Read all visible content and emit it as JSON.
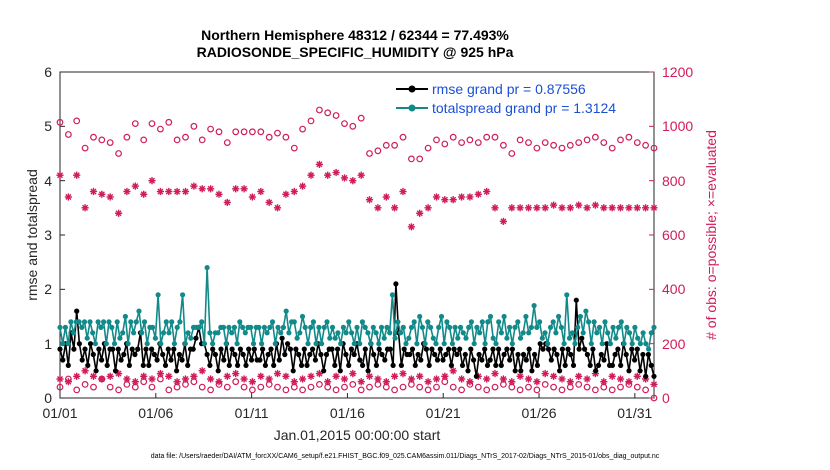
{
  "chart_data": {
    "type": "line",
    "title_line1": "Northern Hemisphere 48312 / 62344 = 77.493%",
    "title_line2": "RADIOSONDE_SPECIFIC_HUMIDITY @ 925 hPa",
    "xlabel": "Jan.01,2015 00:00:00 start",
    "ylabel_left": "rmse and totalspread",
    "ylabel_right": "# of obs: o=possible; ×=evaluated",
    "footnote": "data file: /Users/raeder/DAI/ATM_forcXX/CAM6_setup/f.e21.FHIST_BGC.f09_025.CAM6assim.011/Diags_NTrS_2017-02/Diags_NTrS_2015-01/obs_diag_output.nc",
    "x_range": [
      1,
      32
    ],
    "ylim_left": [
      0,
      6
    ],
    "ylim_right": [
      0,
      1200
    ],
    "yticks_left": [
      "0",
      "1",
      "2",
      "3",
      "4",
      "5",
      "6"
    ],
    "yticks_right": [
      "0",
      "200",
      "400",
      "600",
      "800",
      "1000",
      "1200"
    ],
    "x_ticks": [
      {
        "day": 1,
        "label": "01/01"
      },
      {
        "day": 6,
        "label": "01/06"
      },
      {
        "day": 11,
        "label": "01/11"
      },
      {
        "day": 16,
        "label": "01/16"
      },
      {
        "day": 21,
        "label": "01/21"
      },
      {
        "day": 26,
        "label": "01/26"
      },
      {
        "day": 31,
        "label": "01/31"
      }
    ],
    "legend": [
      {
        "label": "rmse grand pr = 0.87556",
        "color": "#000000"
      },
      {
        "label": "totalspread grand pr = 1.3124",
        "color": "#138a8a"
      }
    ],
    "series": [
      {
        "name": "rmse",
        "color": "#000000",
        "axis": "left",
        "values": [
          0.9,
          0.7,
          1.0,
          0.6,
          1.2,
          0.9,
          1.6,
          1.0,
          0.7,
          0.9,
          0.6,
          1.0,
          0.8,
          0.5,
          0.9,
          0.7,
          1.0,
          0.6,
          0.9,
          0.9,
          0.5,
          0.9,
          0.7,
          0.8,
          1.0,
          0.6,
          0.9,
          0.8,
          0.9,
          1.2,
          0.6,
          0.9,
          0.6,
          0.9,
          0.8,
          0.7,
          1.0,
          0.8,
          0.6,
          0.9,
          0.7,
          0.9,
          0.5,
          0.8,
          0.7,
          1.0,
          0.6,
          0.9,
          0.9,
          1.1,
          1.3,
          1.0,
          1.0,
          0.8,
          0.6,
          0.9,
          0.8,
          0.5,
          0.9,
          0.7,
          1.0,
          0.6,
          0.9,
          0.8,
          0.6,
          0.9,
          0.8,
          0.6,
          0.9,
          0.7,
          0.9,
          0.7,
          0.7,
          0.9,
          0.6,
          0.8,
          0.9,
          0.6,
          1.0,
          0.7,
          1.1,
          0.8,
          1.0,
          0.9,
          0.5,
          0.9,
          0.8,
          0.6,
          0.9,
          0.6,
          0.8,
          0.9,
          0.7,
          1.0,
          0.8,
          0.5,
          0.8,
          0.9,
          0.9,
          0.6,
          0.9,
          0.5,
          1.0,
          0.8,
          0.6,
          0.9,
          0.8,
          1.0,
          0.7,
          0.6,
          0.9,
          0.5,
          1.0,
          0.8,
          0.6,
          0.9,
          0.8,
          0.7,
          0.9,
          0.9,
          0.6,
          2.1,
          1.2,
          0.6,
          0.9,
          0.8,
          0.8,
          0.9,
          0.6,
          0.8,
          0.7,
          1.0,
          0.9,
          0.6,
          0.9,
          0.8,
          0.7,
          0.9,
          0.7,
          0.8,
          0.9,
          0.6,
          0.9,
          0.8,
          0.9,
          0.6,
          0.8,
          0.5,
          0.9,
          0.7,
          0.4,
          0.8,
          0.7,
          0.9,
          0.6,
          0.7,
          0.9,
          0.6,
          0.9,
          0.6,
          0.8,
          0.9,
          0.7,
          0.9,
          0.5,
          0.8,
          0.5,
          0.8,
          0.7,
          0.9,
          0.5,
          0.8,
          0.6,
          1.0,
          0.9,
          1.0,
          0.9,
          0.7,
          0.9,
          0.8,
          0.5,
          0.9,
          0.6,
          0.9,
          0.8,
          0.6,
          1.8,
          0.9,
          1.1,
          0.9,
          0.8,
          0.6,
          0.9,
          0.5,
          0.6,
          0.8,
          0.7,
          1.0,
          0.6,
          0.6,
          0.8,
          0.9,
          0.6,
          1.0,
          0.8,
          0.5,
          0.9,
          0.7,
          0.9,
          0.5,
          0.8,
          0.4,
          0.8,
          0.6,
          0.4
        ]
      },
      {
        "name": "totalspread",
        "color": "#138a8a",
        "axis": "left",
        "values": [
          1.3,
          1.0,
          1.3,
          1.0,
          1.4,
          1.2,
          1.4,
          1.4,
          1.3,
          1.4,
          1.1,
          1.4,
          1.2,
          1.0,
          1.4,
          1.3,
          1.4,
          1.0,
          1.4,
          1.3,
          1.0,
          1.4,
          1.1,
          1.2,
          1.5,
          1.0,
          1.4,
          1.2,
          1.4,
          1.6,
          1.2,
          1.4,
          1.0,
          1.3,
          1.3,
          1.1,
          1.9,
          1.0,
          1.2,
          1.4,
          1.2,
          1.4,
          1.0,
          1.3,
          1.4,
          1.9,
          1.0,
          1.2,
          1.1,
          1.3,
          1.3,
          1.3,
          1.4,
          1.0,
          2.4,
          1.2,
          1.0,
          1.2,
          1.2,
          1.3,
          1.3,
          1.0,
          1.3,
          1.2,
          1.3,
          1.0,
          1.4,
          1.3,
          1.2,
          1.3,
          1.3,
          1.0,
          1.3,
          1.3,
          1.0,
          1.3,
          1.2,
          1.3,
          1.4,
          1.0,
          1.3,
          1.2,
          1.3,
          1.6,
          1.2,
          1.4,
          1.4,
          1.1,
          1.2,
          1.5,
          1.3,
          1.0,
          1.3,
          1.4,
          1.0,
          1.3,
          1.0,
          1.3,
          1.4,
          1.1,
          1.3,
          1.1,
          1.2,
          1.0,
          1.3,
          1.2,
          1.4,
          1.2,
          1.0,
          1.3,
          1.0,
          1.4,
          1.3,
          1.2,
          1.0,
          1.3,
          1.2,
          1.0,
          1.3,
          1.1,
          1.3,
          1.2,
          1.9,
          1.1,
          1.4,
          1.2,
          1.3,
          1.0,
          1.1,
          1.3,
          1.4,
          1.0,
          1.5,
          1.3,
          1.0,
          1.4,
          1.3,
          1.1,
          1.0,
          1.3,
          1.5,
          1.0,
          1.4,
          1.3,
          1.0,
          1.3,
          1.1,
          1.3,
          1.2,
          1.1,
          1.3,
          1.4,
          1.0,
          1.3,
          1.2,
          1.4,
          1.0,
          1.4,
          1.5,
          1.1,
          1.0,
          1.4,
          1.2,
          1.5,
          1.1,
          1.3,
          1.0,
          1.3,
          1.4,
          1.1,
          1.2,
          1.5,
          1.2,
          1.3,
          1.7,
          1.3,
          1.4,
          1.1,
          1.2,
          1.0,
          1.3,
          1.4,
          1.2,
          1.5,
          1.3,
          1.0,
          1.9,
          1.1,
          1.2,
          1.0,
          1.3,
          1.5,
          1.2,
          1.6,
          1.4,
          1.0,
          1.4,
          1.2,
          1.3,
          1.0,
          1.4,
          1.2,
          1.0,
          1.3,
          1.1,
          1.3,
          1.4,
          1.0,
          1.3,
          1.2,
          1.0,
          1.3,
          1.1,
          1.0,
          1.2,
          1.0,
          0.9,
          1.2,
          1.3
        ]
      },
      {
        "name": "obs possible",
        "color": "#d01c5b",
        "axis": "right",
        "marker": "o",
        "values": [
          1015,
          970,
          1020,
          920,
          960,
          950,
          940,
          900,
          960,
          1010,
          950,
          1010,
          990,
          1015,
          950,
          960,
          1000,
          950,
          990,
          980,
          940,
          980,
          980,
          980,
          980,
          960,
          975,
          960,
          920,
          990,
          1020,
          1060,
          1050,
          1040,
          1010,
          1000,
          1030,
          900,
          910,
          930,
          930,
          960,
          880,
          880,
          920,
          950,
          935,
          960,
          940,
          950,
          940,
          960,
          960,
          930,
          900,
          950,
          940,
          920,
          940,
          930,
          920,
          930,
          940,
          950,
          960,
          940,
          920,
          950,
          960,
          940,
          930,
          920
        ]
      },
      {
        "name": "obs evaluated",
        "color": "#d01c5b",
        "axis": "right",
        "marker": "x",
        "values": [
          820,
          740,
          820,
          700,
          760,
          750,
          740,
          680,
          760,
          780,
          750,
          800,
          760,
          760,
          760,
          760,
          780,
          770,
          770,
          750,
          720,
          770,
          770,
          740,
          760,
          720,
          700,
          750,
          760,
          780,
          820,
          860,
          820,
          830,
          810,
          800,
          820,
          730,
          700,
          740,
          700,
          760,
          630,
          680,
          700,
          740,
          730,
          730,
          740,
          740,
          750,
          760,
          700,
          650,
          700,
          700,
          700,
          700,
          700,
          710,
          700,
          700,
          710,
          700,
          710,
          700,
          700,
          700,
          700,
          700,
          700,
          700
        ]
      },
      {
        "name": "obs possible (daily)",
        "color": "#d01c5b",
        "axis": "right",
        "marker": "o",
        "values": [
          40,
          70,
          30,
          50,
          40,
          70,
          40,
          30,
          50,
          40,
          60,
          40,
          70,
          30,
          40,
          50,
          60,
          40,
          30,
          50,
          40,
          60,
          40,
          30,
          40,
          50,
          40,
          30,
          40,
          30,
          40,
          50,
          40,
          30,
          40,
          50,
          30,
          40,
          50,
          40,
          30,
          40,
          50,
          40,
          30,
          40,
          60,
          40,
          30,
          50,
          40,
          30,
          40,
          50,
          40,
          30,
          40,
          30,
          50,
          40,
          30,
          40,
          50,
          40,
          30,
          40,
          30,
          40,
          50,
          40,
          30,
          0
        ]
      },
      {
        "name": "obs evaluated (daily)",
        "color": "#d01c5b",
        "axis": "right",
        "marker": "x",
        "values": [
          70,
          60,
          80,
          100,
          80,
          70,
          80,
          90,
          70,
          60,
          80,
          70,
          90,
          80,
          60,
          70,
          80,
          100,
          70,
          60,
          80,
          90,
          70,
          60,
          80,
          70,
          90,
          80,
          60,
          70,
          80,
          90,
          60,
          80,
          70,
          90,
          60,
          80,
          70,
          60,
          80,
          90,
          70,
          80,
          60,
          70,
          80,
          100,
          70,
          60,
          80,
          70,
          90,
          70,
          60,
          80,
          70,
          60,
          90,
          80,
          70,
          60,
          80,
          70,
          90,
          60,
          80,
          70,
          60,
          80,
          70,
          50
        ]
      }
    ]
  }
}
